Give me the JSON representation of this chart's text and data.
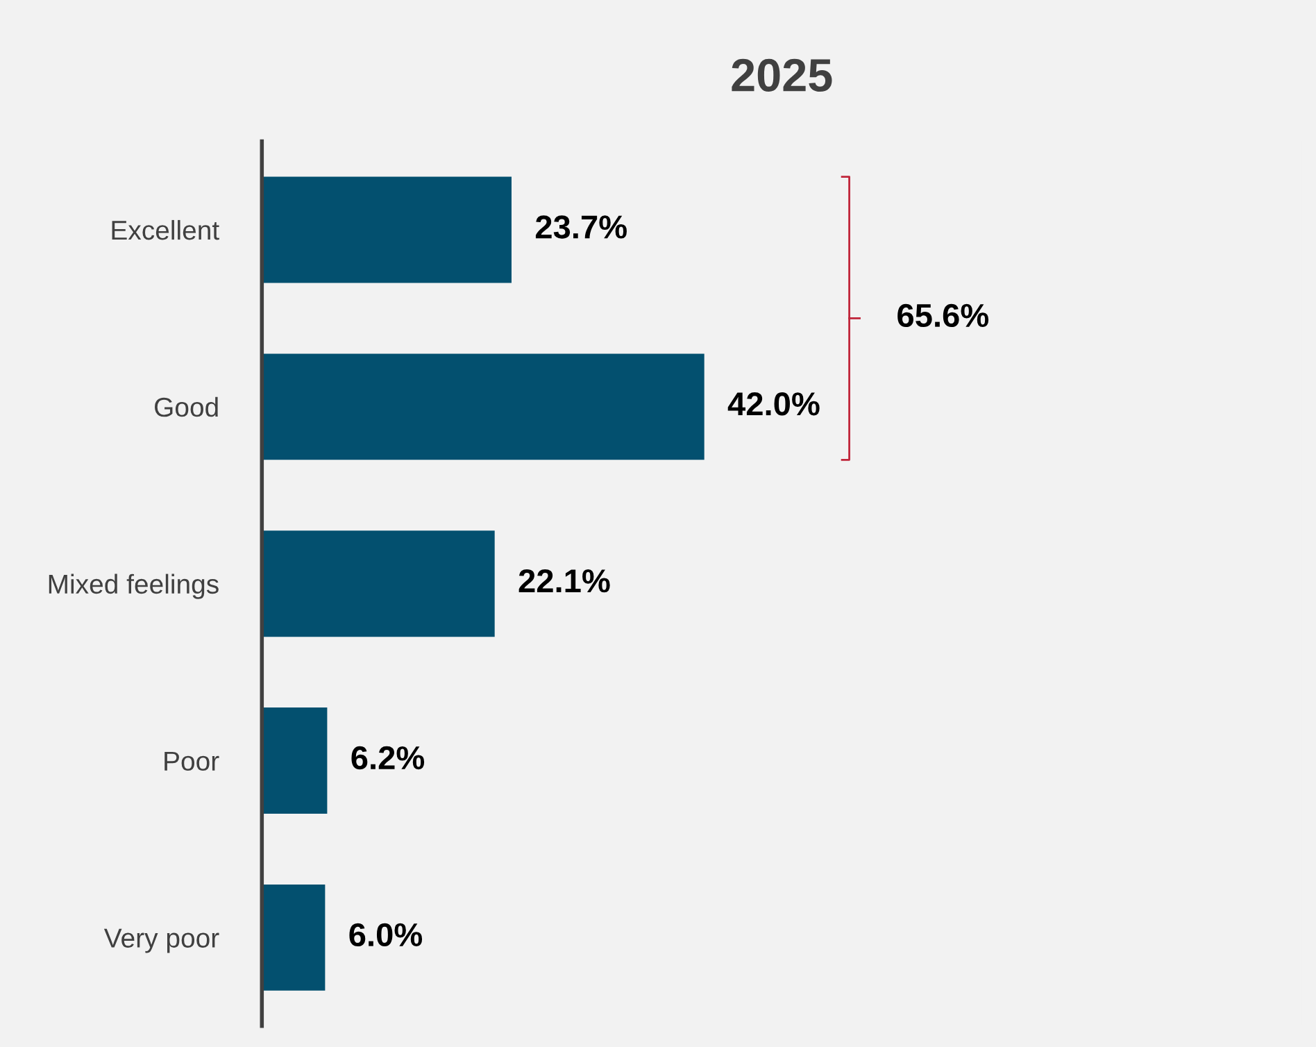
{
  "chart_data": {
    "type": "bar",
    "orientation": "horizontal",
    "title": "2025",
    "categories": [
      "Excellent",
      "Good",
      "Mixed feelings",
      "Poor",
      "Very poor"
    ],
    "values": [
      23.7,
      42.0,
      22.1,
      6.2,
      6.0
    ],
    "value_labels": [
      "23.7%",
      "42.0%",
      "22.1%",
      "6.2%",
      "6.0%"
    ],
    "color": "#03506f",
    "annotations": [
      "65.6%"
    ],
    "grid": false,
    "legend": false
  }
}
